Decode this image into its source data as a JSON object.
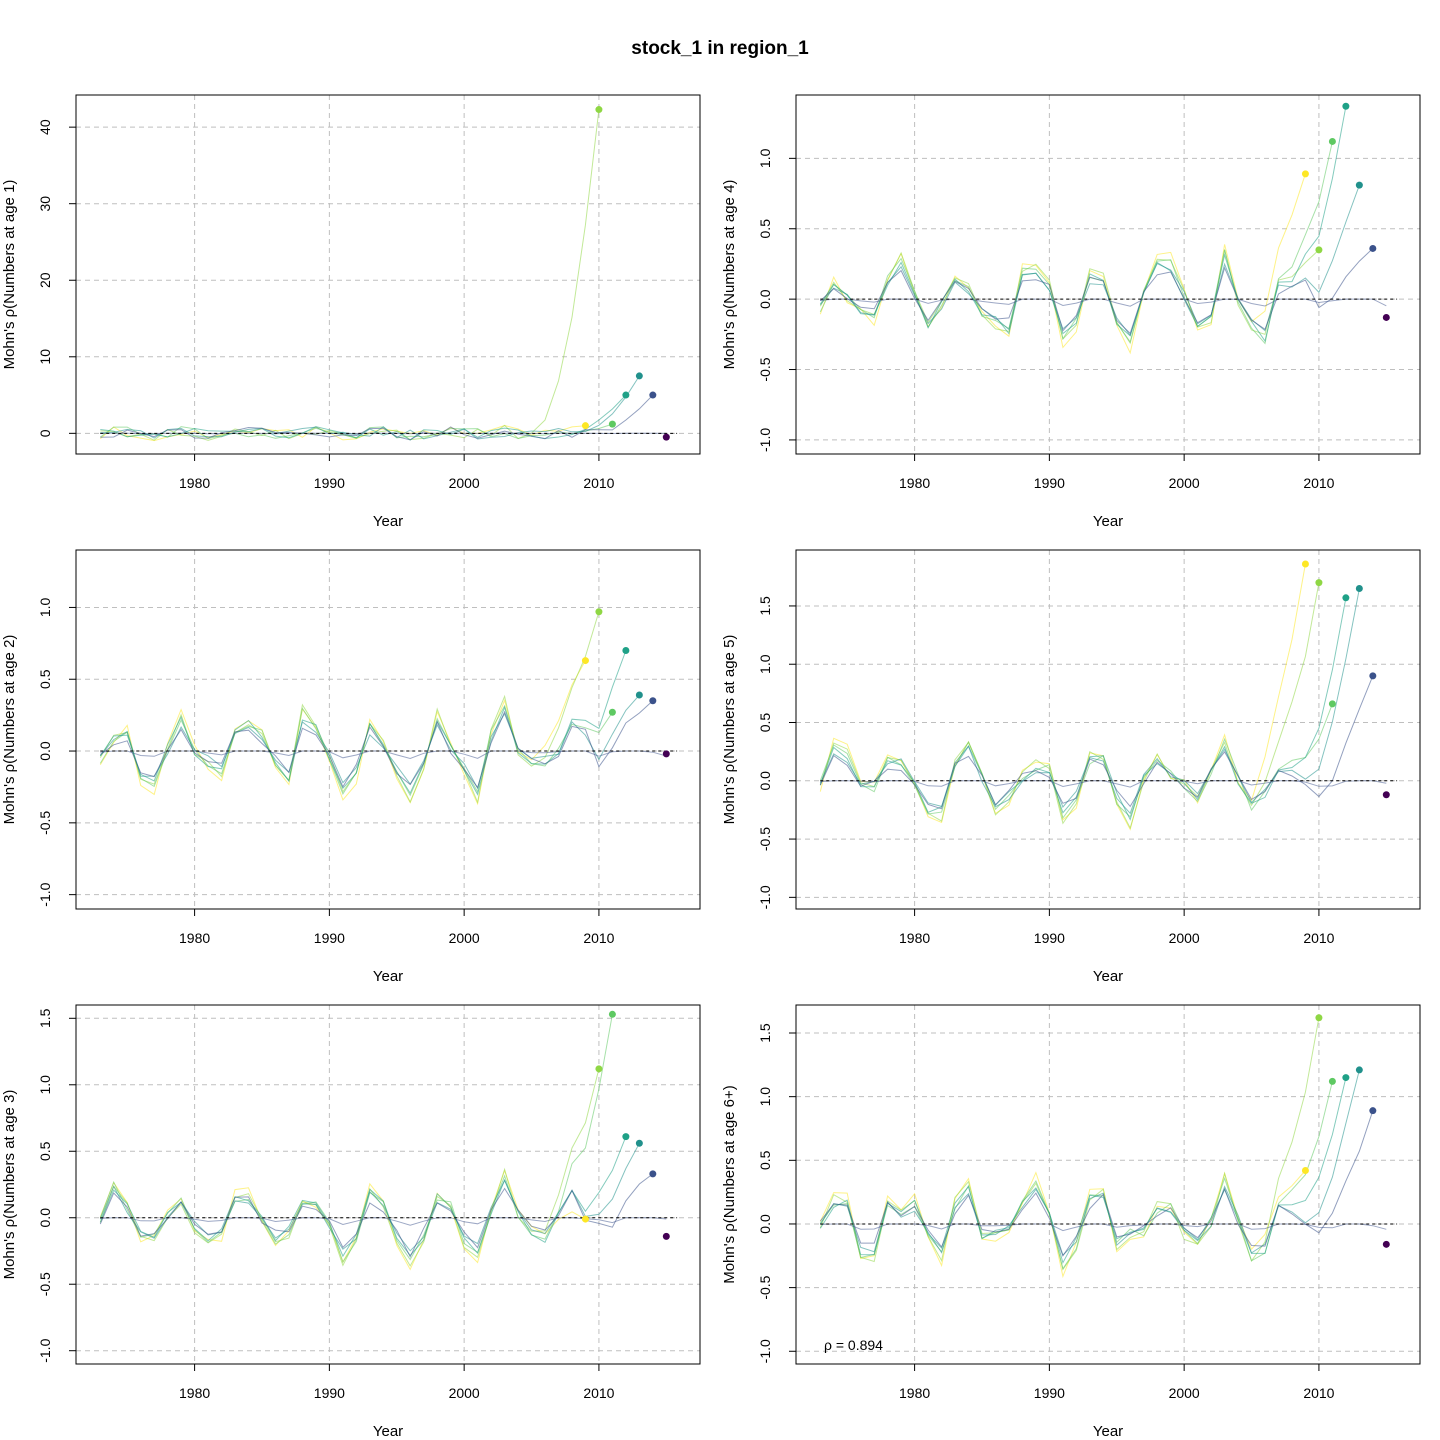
{
  "title": "stock_1 in region_1",
  "colors": {
    "peel_colors": [
      "#440154",
      "#3b528b",
      "#21918c",
      "#1fa187",
      "#5ec962",
      "#8fd744",
      "#fde725"
    ],
    "grid": "#bfbfbf",
    "axis": "#000000"
  },
  "chart_data": [
    {
      "type": "line",
      "panel": "age-1",
      "ylabel": "Mohn's ρ(Numbers at age 1)",
      "xlabel": "Year",
      "xlim": [
        1971.2,
        2017.5
      ],
      "ylim": [
        -2.7,
        44.2
      ],
      "xticks": [
        1980,
        1990,
        2000,
        2010
      ],
      "yticks": [
        0,
        10,
        20,
        30,
        40
      ],
      "grid": true,
      "peel_end_values": [
        42.3,
        1.2,
        5.0,
        7.5,
        5.0,
        -0.5
      ],
      "points": [
        {
          "x": 2009,
          "y": 1.0,
          "c": 6
        },
        {
          "x": 2010,
          "y": 42.3,
          "c": 5
        },
        {
          "x": 2011,
          "y": 1.2,
          "c": 4
        },
        {
          "x": 2012,
          "y": 5.0,
          "c": 3
        },
        {
          "x": 2013,
          "y": 7.5,
          "c": 2
        },
        {
          "x": 2014,
          "y": 5.0,
          "c": 1
        },
        {
          "x": 2015,
          "y": -0.5,
          "c": 0
        }
      ]
    },
    {
      "type": "line",
      "panel": "age-4",
      "ylabel": "Mohn's ρ(Numbers at age 4)",
      "xlabel": "Year",
      "xlim": [
        1971.2,
        2017.5
      ],
      "ylim": [
        -1.1,
        1.45
      ],
      "xticks": [
        1980,
        1990,
        2000,
        2010
      ],
      "yticks": [
        -1.0,
        -0.5,
        0.0,
        0.5,
        1.0
      ],
      "grid": true,
      "points": [
        {
          "x": 2009,
          "y": 0.89,
          "c": 6
        },
        {
          "x": 2010,
          "y": 0.35,
          "c": 5
        },
        {
          "x": 2011,
          "y": 1.12,
          "c": 4
        },
        {
          "x": 2012,
          "y": 1.37,
          "c": 3
        },
        {
          "x": 2013,
          "y": 0.81,
          "c": 2
        },
        {
          "x": 2014,
          "y": 0.36,
          "c": 1
        },
        {
          "x": 2015,
          "y": -0.13,
          "c": 0
        }
      ]
    },
    {
      "type": "line",
      "panel": "age-2",
      "ylabel": "Mohn's ρ(Numbers at age 2)",
      "xlabel": "Year",
      "xlim": [
        1971.2,
        2017.5
      ],
      "ylim": [
        -1.1,
        1.4
      ],
      "xticks": [
        1980,
        1990,
        2000,
        2010
      ],
      "yticks": [
        -1.0,
        -0.5,
        0.0,
        0.5,
        1.0
      ],
      "grid": true,
      "points": [
        {
          "x": 2009,
          "y": 0.63,
          "c": 6
        },
        {
          "x": 2010,
          "y": 0.97,
          "c": 5
        },
        {
          "x": 2011,
          "y": 0.27,
          "c": 4
        },
        {
          "x": 2012,
          "y": 0.7,
          "c": 3
        },
        {
          "x": 2013,
          "y": 0.39,
          "c": 2
        },
        {
          "x": 2014,
          "y": 0.35,
          "c": 1
        },
        {
          "x": 2015,
          "y": -0.02,
          "c": 0
        }
      ]
    },
    {
      "type": "line",
      "panel": "age-5",
      "ylabel": "Mohn's ρ(Numbers at age 5)",
      "xlabel": "Year",
      "xlim": [
        1971.2,
        2017.5
      ],
      "ylim": [
        -1.1,
        1.98
      ],
      "xticks": [
        1980,
        1990,
        2000,
        2010
      ],
      "yticks": [
        -1.0,
        -0.5,
        0.0,
        0.5,
        1.0,
        1.5
      ],
      "grid": true,
      "points": [
        {
          "x": 2009,
          "y": 1.86,
          "c": 6
        },
        {
          "x": 2010,
          "y": 1.7,
          "c": 5
        },
        {
          "x": 2011,
          "y": 0.66,
          "c": 4
        },
        {
          "x": 2012,
          "y": 1.57,
          "c": 3
        },
        {
          "x": 2013,
          "y": 1.65,
          "c": 2
        },
        {
          "x": 2014,
          "y": 0.9,
          "c": 1
        },
        {
          "x": 2015,
          "y": -0.12,
          "c": 0
        }
      ]
    },
    {
      "type": "line",
      "panel": "age-3",
      "ylabel": "Mohn's ρ(Numbers at age 3)",
      "xlabel": "Year",
      "xlim": [
        1971.2,
        2017.5
      ],
      "ylim": [
        -1.1,
        1.6
      ],
      "xticks": [
        1980,
        1990,
        2000,
        2010
      ],
      "yticks": [
        -1.0,
        -0.5,
        0.0,
        0.5,
        1.0,
        1.5
      ],
      "grid": true,
      "points": [
        {
          "x": 2009,
          "y": -0.01,
          "c": 6
        },
        {
          "x": 2010,
          "y": 1.12,
          "c": 5
        },
        {
          "x": 2011,
          "y": 1.53,
          "c": 4
        },
        {
          "x": 2012,
          "y": 0.61,
          "c": 3
        },
        {
          "x": 2013,
          "y": 0.56,
          "c": 2
        },
        {
          "x": 2014,
          "y": 0.33,
          "c": 1
        },
        {
          "x": 2015,
          "y": -0.14,
          "c": 0
        }
      ]
    },
    {
      "type": "line",
      "panel": "age-6plus",
      "ylabel": "Mohn's ρ(Numbers at age 6+)",
      "xlabel": "Year",
      "xlim": [
        1971.2,
        2017.5
      ],
      "ylim": [
        -1.1,
        1.72
      ],
      "xticks": [
        1980,
        1990,
        2000,
        2010
      ],
      "yticks": [
        -1.0,
        -0.5,
        0.0,
        0.5,
        1.0,
        1.5
      ],
      "grid": true,
      "annotation": "ρ = 0.894",
      "points": [
        {
          "x": 2009,
          "y": 0.42,
          "c": 6
        },
        {
          "x": 2010,
          "y": 1.62,
          "c": 5
        },
        {
          "x": 2011,
          "y": 1.12,
          "c": 4
        },
        {
          "x": 2012,
          "y": 1.15,
          "c": 3
        },
        {
          "x": 2013,
          "y": 1.21,
          "c": 2
        },
        {
          "x": 2014,
          "y": 0.89,
          "c": 1
        },
        {
          "x": 2015,
          "y": -0.16,
          "c": 0
        }
      ]
    }
  ]
}
